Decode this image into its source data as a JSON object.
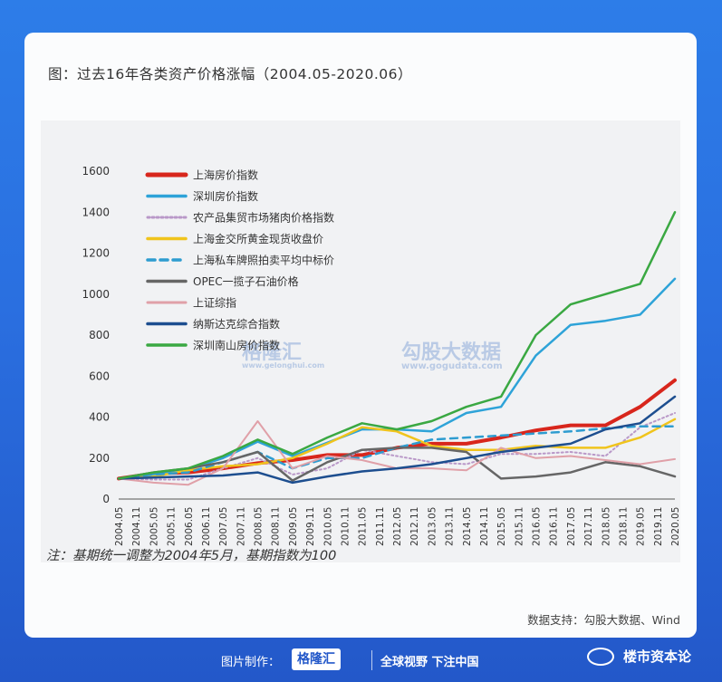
{
  "title": "图：过去16年各类资产价格涨幅（2004.05-2020.06）",
  "note": "注：基期统一调整为2004年5月，基期指数为100",
  "source": "数据支持：勾股大数据、Wind",
  "watermarks": {
    "left": "格隆汇",
    "left_sub": "www.gelonghui.com",
    "right": "勾股大数据",
    "right_sub": "www.gogudata.com"
  },
  "footer": {
    "made_by": "图片制作：",
    "brand": "格隆汇",
    "slogan": "全球视野 下注中国",
    "account": "楼市资本论"
  },
  "chart_data": {
    "type": "line",
    "ylim": [
      0,
      1600
    ],
    "yticks": [
      0,
      200,
      400,
      600,
      800,
      1000,
      1200,
      1400,
      1600
    ],
    "xticks": [
      "2004.05",
      "2004.11",
      "2005.05",
      "2005.11",
      "2006.05",
      "2006.11",
      "2007.05",
      "2007.11",
      "2008.05",
      "2008.11",
      "2009.05",
      "2009.11",
      "2010.05",
      "2010.11",
      "2011.05",
      "2011.11",
      "2012.05",
      "2012.11",
      "2013.05",
      "2013.11",
      "2014.05",
      "2014.11",
      "2015.05",
      "2015.11",
      "2016.05",
      "2016.11",
      "2017.05",
      "2017.11",
      "2018.05",
      "2018.11",
      "2019.05",
      "2019.11",
      "2020.05"
    ],
    "series": [
      {
        "name": "上海房价指数",
        "color": "#d8261c",
        "width": 4,
        "dash": "",
        "x": [
          0,
          2,
          4,
          6,
          8,
          10,
          12,
          14,
          16,
          18,
          20,
          22,
          24,
          26,
          28,
          30,
          32
        ],
        "values": [
          100,
          125,
          130,
          150,
          175,
          190,
          215,
          215,
          250,
          270,
          270,
          300,
          335,
          360,
          360,
          450,
          580
        ]
      },
      {
        "name": "深圳房价指数",
        "color": "#2ea3d8",
        "width": 2.5,
        "dash": "",
        "x": [
          0,
          2,
          4,
          6,
          8,
          10,
          12,
          14,
          16,
          18,
          20,
          22,
          24,
          26,
          28,
          30,
          32
        ],
        "values": [
          100,
          120,
          145,
          200,
          280,
          210,
          275,
          340,
          340,
          330,
          420,
          450,
          700,
          850,
          870,
          900,
          1075
        ]
      },
      {
        "name": "农产品集贸市场猪肉价格指数",
        "color": "#b998c8",
        "width": 2,
        "dash": "2,3",
        "x": [
          0,
          2,
          4,
          6,
          8,
          10,
          12,
          14,
          16,
          18,
          20,
          22,
          24,
          26,
          28,
          30,
          32
        ],
        "values": [
          100,
          95,
          95,
          150,
          200,
          120,
          150,
          240,
          210,
          180,
          170,
          220,
          220,
          230,
          210,
          350,
          420
        ]
      },
      {
        "name": "上海金交所黄金现货收盘价",
        "color": "#f0c41c",
        "width": 2.5,
        "dash": "",
        "x": [
          0,
          2,
          4,
          6,
          8,
          10,
          12,
          14,
          16,
          18,
          20,
          22,
          24,
          26,
          28,
          30,
          32
        ],
        "values": [
          100,
          110,
          140,
          160,
          170,
          200,
          270,
          350,
          330,
          260,
          240,
          240,
          260,
          250,
          250,
          300,
          390
        ]
      },
      {
        "name": "上海私车牌照拍卖平均中标价",
        "color": "#2e9cd0",
        "width": 2.5,
        "dash": "8,6",
        "x": [
          0,
          2,
          4,
          6,
          8,
          10,
          12,
          14,
          16,
          18,
          20,
          22,
          24,
          26,
          28,
          30,
          32
        ],
        "values": [
          100,
          120,
          130,
          180,
          230,
          150,
          200,
          200,
          250,
          290,
          300,
          310,
          320,
          330,
          345,
          355,
          355
        ]
      },
      {
        "name": "OPEC一揽子石油价格",
        "color": "#666666",
        "width": 2.5,
        "dash": "",
        "x": [
          0,
          2,
          4,
          6,
          8,
          10,
          12,
          14,
          16,
          18,
          20,
          22,
          24,
          26,
          28,
          30,
          32
        ],
        "values": [
          100,
          130,
          150,
          180,
          230,
          90,
          180,
          240,
          250,
          250,
          230,
          100,
          110,
          130,
          180,
          160,
          110
        ]
      },
      {
        "name": "上证综指",
        "color": "#e0a0a8",
        "width": 2,
        "dash": "",
        "x": [
          0,
          2,
          4,
          6,
          8,
          10,
          12,
          14,
          16,
          18,
          20,
          22,
          24,
          26,
          28,
          30,
          32
        ],
        "values": [
          100,
          80,
          70,
          150,
          380,
          150,
          210,
          190,
          150,
          150,
          140,
          250,
          200,
          210,
          190,
          170,
          195
        ]
      },
      {
        "name": "纳斯达克综合指数",
        "color": "#1d4e8f",
        "width": 2.5,
        "dash": "",
        "x": [
          0,
          2,
          4,
          6,
          8,
          10,
          12,
          14,
          16,
          18,
          20,
          22,
          24,
          26,
          28,
          30,
          32
        ],
        "values": [
          100,
          105,
          110,
          115,
          130,
          80,
          110,
          135,
          150,
          170,
          200,
          230,
          250,
          270,
          340,
          370,
          500
        ]
      },
      {
        "name": "深圳南山房价指数",
        "color": "#3aa842",
        "width": 2.5,
        "dash": "",
        "x": [
          0,
          2,
          4,
          6,
          8,
          10,
          12,
          14,
          16,
          18,
          20,
          22,
          24,
          26,
          28,
          30,
          32
        ],
        "values": [
          100,
          130,
          150,
          210,
          290,
          220,
          300,
          370,
          340,
          380,
          450,
          500,
          800,
          950,
          1000,
          1050,
          1400
        ]
      }
    ]
  }
}
